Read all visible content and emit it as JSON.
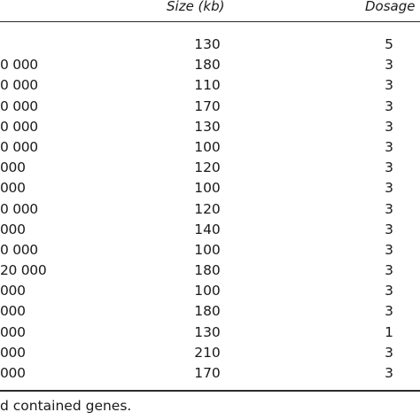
{
  "table": {
    "headers": {
      "size": "Size (kb)",
      "dosage": "Dosage"
    },
    "rows": [
      {
        "region": "",
        "size": "130",
        "dosage": "5"
      },
      {
        "region": "0 000",
        "size": "180",
        "dosage": "3"
      },
      {
        "region": "0 000",
        "size": "110",
        "dosage": "3"
      },
      {
        "region": "0 000",
        "size": "170",
        "dosage": "3"
      },
      {
        "region": "0 000",
        "size": "130",
        "dosage": "3"
      },
      {
        "region": "0 000",
        "size": "100",
        "dosage": "3"
      },
      {
        "region": "000",
        "size": "120",
        "dosage": "3"
      },
      {
        "region": "000",
        "size": "100",
        "dosage": "3"
      },
      {
        "region": "0 000",
        "size": "120",
        "dosage": "3"
      },
      {
        "region": "000",
        "size": "140",
        "dosage": "3"
      },
      {
        "region": "0 000",
        "size": "100",
        "dosage": "3"
      },
      {
        "region": "20 000",
        "size": "180",
        "dosage": "3"
      },
      {
        "region": "000",
        "size": "100",
        "dosage": "3"
      },
      {
        "region": "000",
        "size": "180",
        "dosage": "3"
      },
      {
        "region": "000",
        "size": "130",
        "dosage": "1"
      },
      {
        "region": "000",
        "size": "210",
        "dosage": "3"
      },
      {
        "region": "000",
        "size": "170",
        "dosage": "3"
      }
    ],
    "footnote": "d contained genes."
  }
}
